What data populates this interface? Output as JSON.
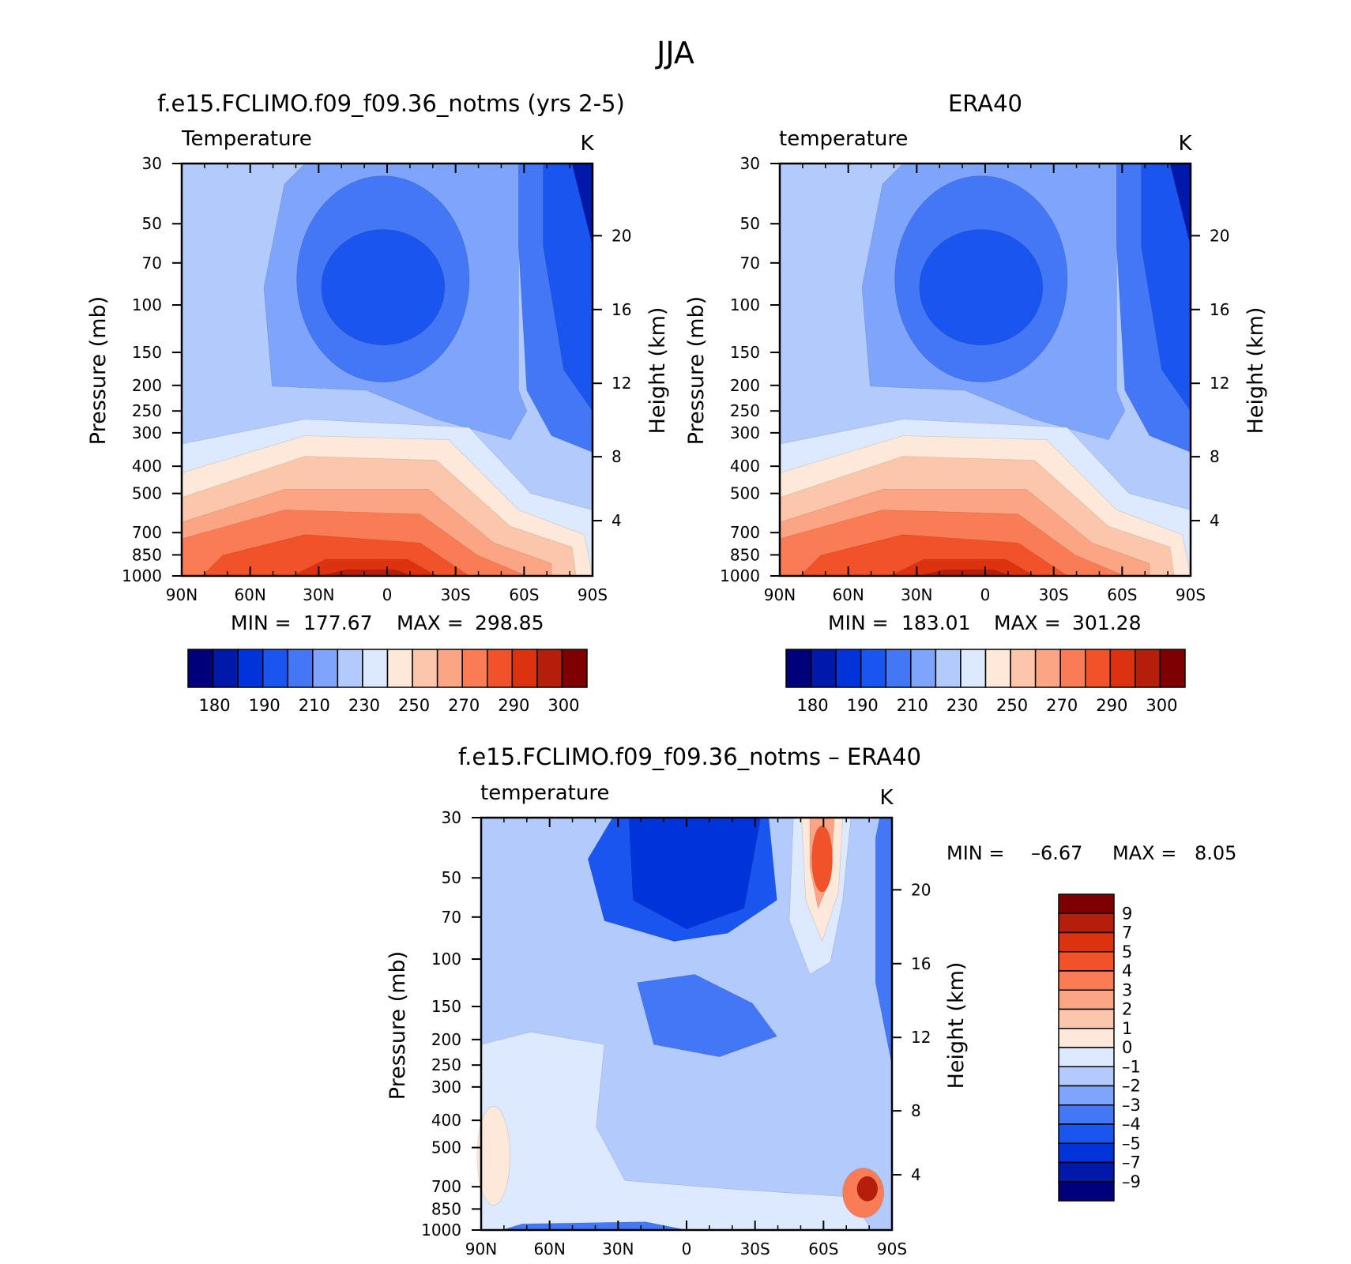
{
  "figure_title": "JJA",
  "colors": {
    "abs_levels": [
      "#00007a",
      "#0019a8",
      "#0033d9",
      "#1a55f0",
      "#4477f5",
      "#7fa5fa",
      "#b2cbfc",
      "#dce9fe",
      "#fde8d9",
      "#fcc6ab",
      "#fba585",
      "#fa7c55",
      "#f2522a",
      "#dc3210",
      "#b51e0a",
      "#7f0000"
    ],
    "diff_levels": [
      "#00007a",
      "#0019a8",
      "#0033d9",
      "#1a55f0",
      "#4477f5",
      "#7fa5fa",
      "#b2cbfc",
      "#dce9fe",
      "#fde8d9",
      "#fcc6ab",
      "#fba585",
      "#fa7c55",
      "#f2522a",
      "#dc3210",
      "#b51e0a",
      "#7f0000"
    ],
    "no_data": "#ffffff"
  },
  "chart_data": [
    {
      "type": "heatmap",
      "panel": "model",
      "title": "f.e15.FCLIMO.f09_f09.36_notms (yrs 2-5)",
      "left_label": "Temperature",
      "units": "K",
      "ylabel": "Pressure (mb)",
      "y2label": "Height (km)",
      "x_ticks": [
        "90N",
        "60N",
        "30N",
        "0",
        "30S",
        "60S",
        "90S"
      ],
      "y_ticks": [
        "30",
        "50",
        "70",
        "100",
        "150",
        "200",
        "250",
        "300",
        "400",
        "500",
        "700",
        "850",
        "1000"
      ],
      "y2_ticks": [
        "20",
        "16",
        "12",
        "8",
        "4"
      ],
      "min_label": "MIN =",
      "min_value": "177.67",
      "max_label": "MAX =",
      "max_value": "298.85",
      "colorbar_labels": [
        "180",
        "190",
        "210",
        "230",
        "250",
        "270",
        "290",
        "300"
      ],
      "approx_range": [
        177.67,
        298.85
      ]
    },
    {
      "type": "heatmap",
      "panel": "obs",
      "title": "ERA40",
      "left_label": "temperature",
      "units": "K",
      "ylabel": "Pressure (mb)",
      "y2label": "Height (km)",
      "x_ticks": [
        "90N",
        "60N",
        "30N",
        "0",
        "30S",
        "60S",
        "90S"
      ],
      "y_ticks": [
        "30",
        "50",
        "70",
        "100",
        "150",
        "200",
        "250",
        "300",
        "400",
        "500",
        "700",
        "850",
        "1000"
      ],
      "y2_ticks": [
        "20",
        "16",
        "12",
        "8",
        "4"
      ],
      "min_label": "MIN =",
      "min_value": "183.01",
      "max_label": "MAX =",
      "max_value": "301.28",
      "colorbar_labels": [
        "180",
        "190",
        "210",
        "230",
        "250",
        "270",
        "290",
        "300"
      ],
      "approx_range": [
        183.01,
        301.28
      ]
    },
    {
      "type": "heatmap",
      "panel": "diff",
      "title": "f.e15.FCLIMO.f09_f09.36_notms – ERA40",
      "left_label": "temperature",
      "units": "K",
      "ylabel": "Pressure (mb)",
      "y2label": "Height (km)",
      "x_ticks": [
        "90N",
        "60N",
        "30N",
        "0",
        "30S",
        "60S",
        "90S"
      ],
      "y_ticks": [
        "30",
        "50",
        "70",
        "100",
        "150",
        "200",
        "250",
        "300",
        "400",
        "500",
        "700",
        "850",
        "1000"
      ],
      "y2_ticks": [
        "20",
        "16",
        "12",
        "8",
        "4"
      ],
      "min_label": "MIN =",
      "min_value": "–6.67",
      "max_label": "MAX =",
      "max_value": "8.05",
      "colorbar_labels": [
        "9",
        "7",
        "5",
        "4",
        "3",
        "2",
        "1",
        "0",
        "–1",
        "–2",
        "–3",
        "–4",
        "–5",
        "–7",
        "–9"
      ],
      "approx_range": [
        -6.67,
        8.05
      ]
    }
  ]
}
